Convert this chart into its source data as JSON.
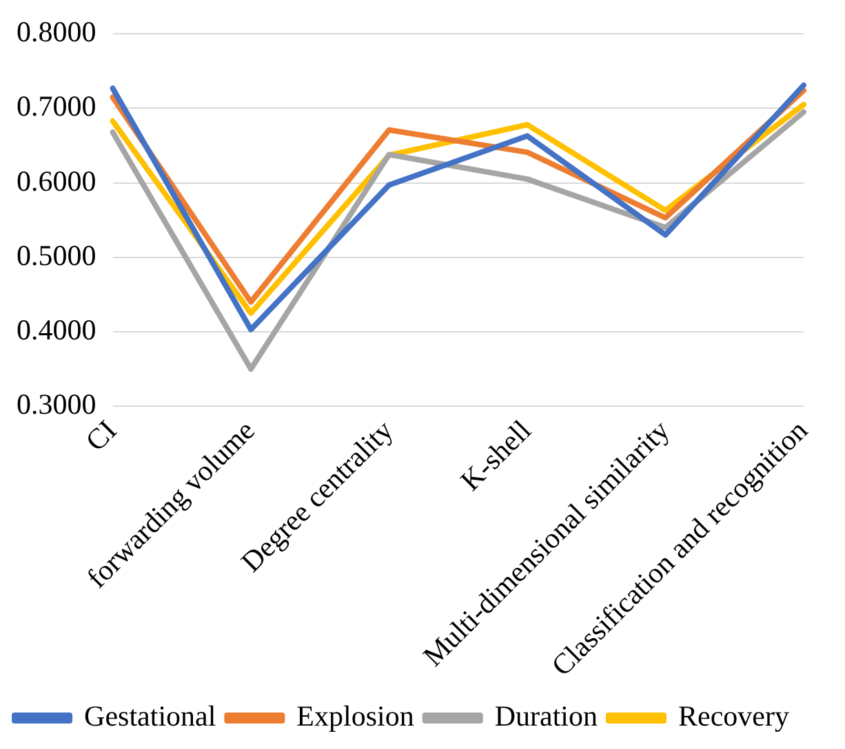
{
  "chart_data": {
    "type": "line",
    "categories": [
      "CI",
      "forwarding volume",
      "Degree centrality",
      "K-shell",
      "Multi-dimensional similarity",
      "Classification and recognition"
    ],
    "series": [
      {
        "name": "Gestational",
        "color": "#4472c4",
        "values": [
          0.727,
          0.403,
          0.597,
          0.663,
          0.53,
          0.731
        ]
      },
      {
        "name": "Explosion",
        "color": "#ed7d31",
        "values": [
          0.715,
          0.44,
          0.671,
          0.641,
          0.553,
          0.724
        ]
      },
      {
        "name": "Duration",
        "color": "#a5a5a5",
        "values": [
          0.668,
          0.35,
          0.638,
          0.605,
          0.54,
          0.695
        ]
      },
      {
        "name": "Recovery",
        "color": "#ffc000",
        "values": [
          0.683,
          0.425,
          0.637,
          0.678,
          0.563,
          0.705
        ]
      }
    ],
    "ylim": [
      0.3,
      0.8
    ],
    "yticks": [
      {
        "value": 0.3,
        "label": "0.3000"
      },
      {
        "value": 0.4,
        "label": "0.4000"
      },
      {
        "value": 0.5,
        "label": "0.5000"
      },
      {
        "value": 0.6,
        "label": "0.6000"
      },
      {
        "value": 0.7,
        "label": "0.7000"
      },
      {
        "value": 0.8,
        "label": "0.8000"
      }
    ],
    "grid": "y",
    "legend": "bottom",
    "marker": "none",
    "line_style": "solid"
  }
}
